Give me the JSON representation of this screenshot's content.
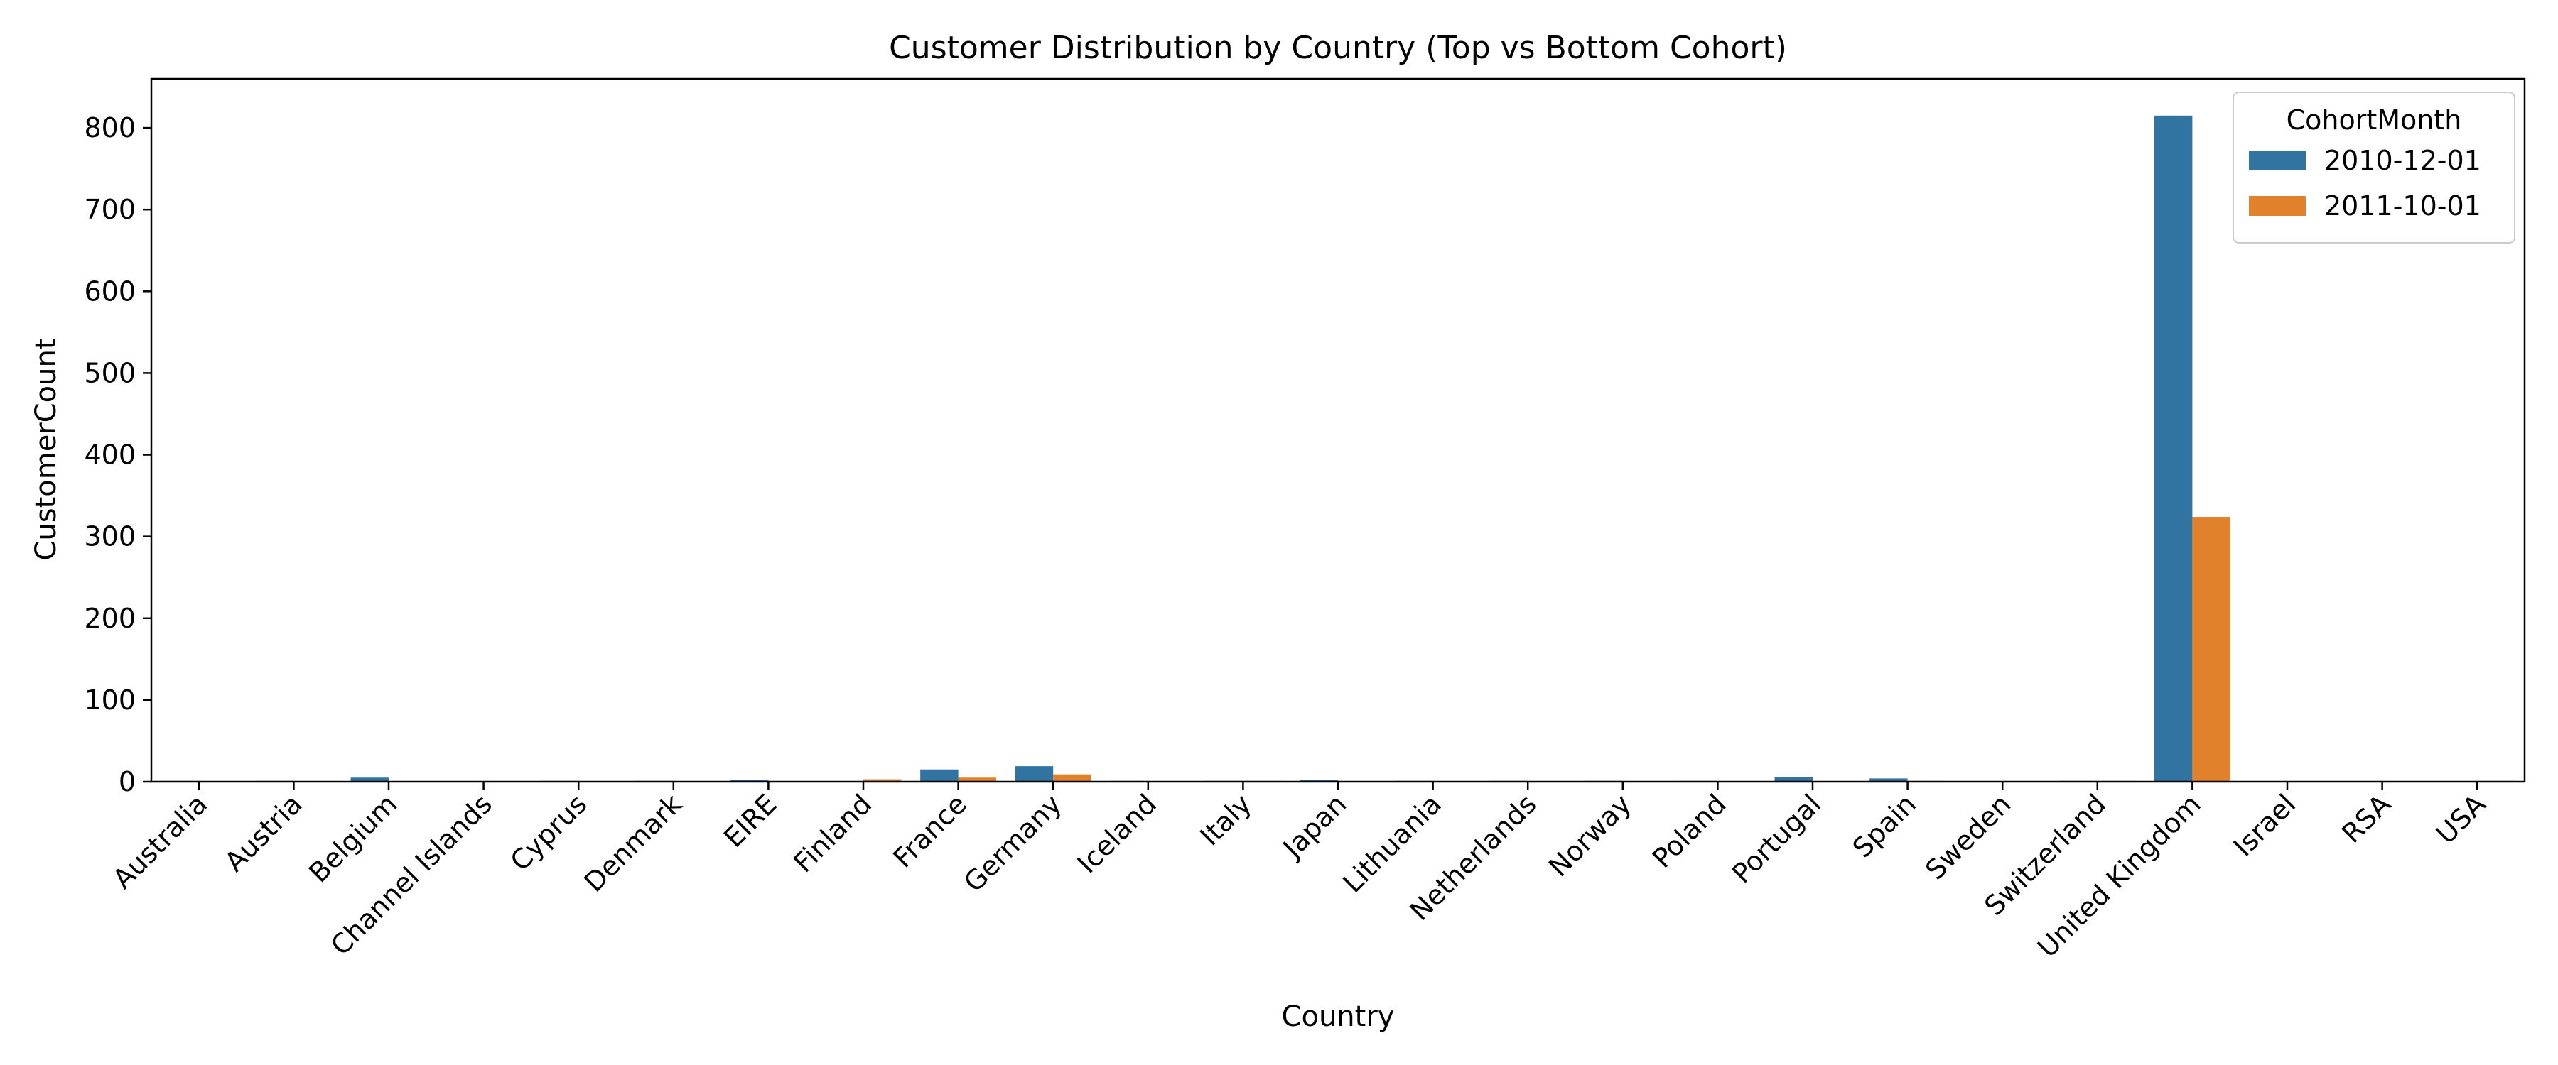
{
  "chart_data": {
    "type": "bar",
    "title": "Customer Distribution by Country (Top vs Bottom Cohort)",
    "xlabel": "Country",
    "ylabel": "CustomerCount",
    "ylim": [
      0,
      860
    ],
    "yticks": [
      0,
      100,
      200,
      300,
      400,
      500,
      600,
      700,
      800
    ],
    "grid": false,
    "legend": {
      "title": "CohortMonth",
      "placement": "top-right"
    },
    "categories": [
      "Australia",
      "Austria",
      "Belgium",
      "Channel Islands",
      "Cyprus",
      "Denmark",
      "EIRE",
      "Finland",
      "France",
      "Germany",
      "Iceland",
      "Italy",
      "Japan",
      "Lithuania",
      "Netherlands",
      "Norway",
      "Poland",
      "Portugal",
      "Spain",
      "Sweden",
      "Switzerland",
      "United Kingdom",
      "Israel",
      "RSA",
      "USA"
    ],
    "series": [
      {
        "name": "2010-12-01",
        "color": "#3274a1",
        "values": [
          1,
          1,
          5,
          0,
          1,
          1,
          2,
          0,
          15,
          19,
          1,
          1,
          2,
          1,
          1,
          1,
          1,
          6,
          4,
          0,
          1,
          815,
          0,
          0,
          0
        ]
      },
      {
        "name": "2011-10-01",
        "color": "#e1812c",
        "values": [
          0,
          0,
          0,
          0,
          0,
          0,
          0,
          3,
          5,
          9,
          0,
          1,
          0,
          0,
          0,
          0,
          0,
          0,
          1,
          0,
          1,
          324,
          0,
          0,
          1
        ]
      }
    ]
  }
}
